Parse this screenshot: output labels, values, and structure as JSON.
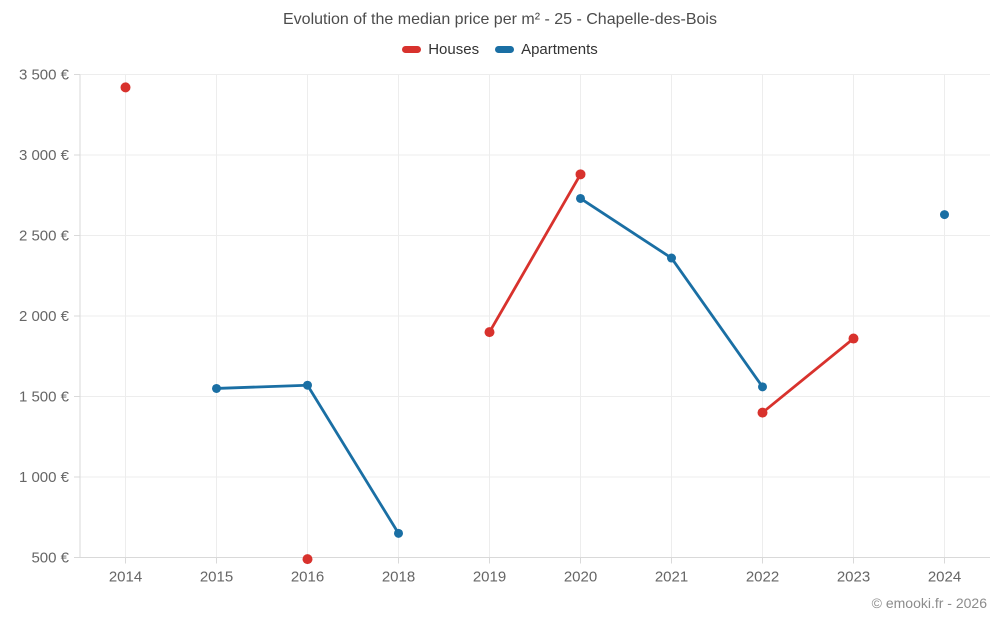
{
  "chart_data": {
    "type": "line",
    "title": "Evolution of the median price per m² - 25 - Chapelle-des-Bois",
    "categories": [
      "2014",
      "2015",
      "2016",
      "2018",
      "2019",
      "2020",
      "2021",
      "2022",
      "2023",
      "2024"
    ],
    "series": [
      {
        "name": "Houses",
        "color": "#d8322d",
        "values": [
          3420,
          null,
          490,
          null,
          1900,
          2880,
          null,
          1400,
          1860,
          null
        ]
      },
      {
        "name": "Apartments",
        "color": "#1a6fa4",
        "values": [
          null,
          1550,
          1570,
          650,
          null,
          2730,
          2360,
          1560,
          null,
          2630
        ]
      }
    ],
    "xlabel": "",
    "ylabel": "",
    "ylim": [
      500,
      3500
    ],
    "y_ticks": [
      {
        "value": 3500,
        "label": "3 500 €"
      },
      {
        "value": 3000,
        "label": "3 000 €"
      },
      {
        "value": 2500,
        "label": "2 500 €"
      },
      {
        "value": 2000,
        "label": "2 000 €"
      },
      {
        "value": 1500,
        "label": "1 500 €"
      },
      {
        "value": 1000,
        "label": "1 000 €"
      },
      {
        "value": 500,
        "label": "500 €"
      }
    ],
    "grid": true,
    "legend_position": "top-center",
    "credit": "© emooki.fr - 2026"
  },
  "colors": {
    "houses": "#d8322d",
    "apartments": "#1a6fa4",
    "grid": "#ededed",
    "axis": "#d9d9d9",
    "tick_text": "#666666",
    "title_text": "#4c4c4c",
    "legend_text": "#333333",
    "credit_text": "#8c8c8c",
    "background": "#ffffff"
  }
}
